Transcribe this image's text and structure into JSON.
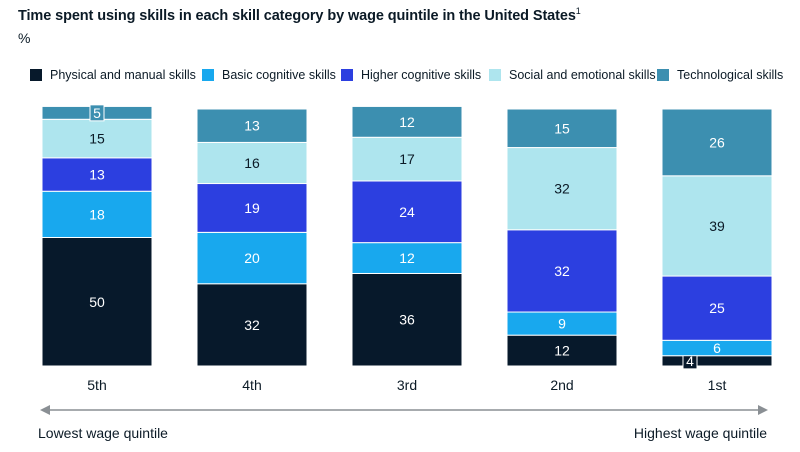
{
  "title": "Time spent using skills in each skill category by wage quintile in the United States",
  "title_footnote": "1",
  "unit": "%",
  "colors": {
    "physical": "#07192b",
    "basic": "#18a8ee",
    "higher": "#2c3fe0",
    "social": "#aee5ee",
    "tech": "#3c8fb0"
  },
  "chart_data": {
    "type": "bar",
    "stacked": true,
    "categories": [
      "5th",
      "4th",
      "3rd",
      "2nd",
      "1st"
    ],
    "series": [
      {
        "name": "Physical and manual skills",
        "key": "physical",
        "values": [
          50,
          32,
          36,
          12,
          4
        ]
      },
      {
        "name": "Basic cognitive skills",
        "key": "basic",
        "values": [
          18,
          20,
          12,
          9,
          6
        ]
      },
      {
        "name": "Higher cognitive skills",
        "key": "higher",
        "values": [
          13,
          19,
          24,
          32,
          25
        ]
      },
      {
        "name": "Social and emotional skills",
        "key": "social",
        "values": [
          15,
          16,
          17,
          32,
          39
        ]
      },
      {
        "name": "Technological skills",
        "key": "tech",
        "values": [
          5,
          13,
          12,
          15,
          26
        ]
      }
    ],
    "ylim": [
      0,
      100
    ],
    "legend_position": "top",
    "grid": false
  },
  "axis": {
    "left_label": "Lowest wage quintile",
    "right_label": "Highest wage quintile"
  }
}
